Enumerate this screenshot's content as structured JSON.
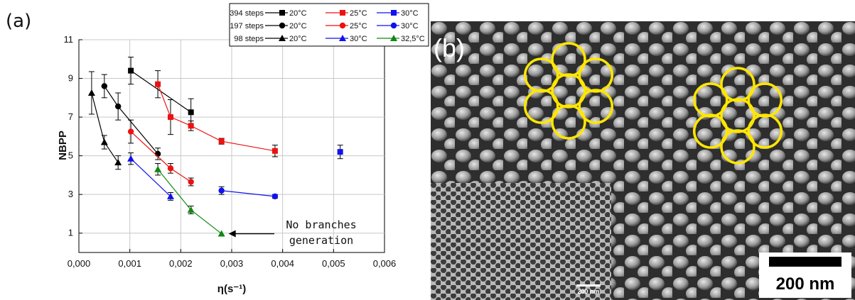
{
  "panel_a_label": "(a)",
  "panel_b_label": "(b)",
  "chart_data": {
    "type": "scatter",
    "xlabel": "η(s⁻¹)",
    "ylabel": "NBPP",
    "xlim": [
      0,
      0.006
    ],
    "ylim": [
      0,
      11
    ],
    "xticks": [
      "0,000",
      "0,001",
      "0,002",
      "0,003",
      "0,004",
      "0,005",
      "0,006"
    ],
    "yticks": [
      "1",
      "3",
      "5",
      "7",
      "9",
      "11"
    ],
    "grid": true,
    "legend_position": "top-right",
    "legend_rows": [
      {
        "label": "394 steps",
        "series": [
          0,
          1,
          2
        ]
      },
      {
        "label": "197 steps",
        "series": [
          3,
          4,
          5
        ]
      },
      {
        "label": "98 steps",
        "series": [
          6,
          7,
          8
        ]
      }
    ],
    "series": [
      {
        "name": "20°C",
        "group": "394 steps",
        "marker": "square",
        "color": "#000000",
        "points": [
          {
            "x": 0.00102,
            "y": 9.4,
            "err": 0.7
          },
          {
            "x": 0.0022,
            "y": 7.25,
            "err": 0.7
          }
        ]
      },
      {
        "name": "25°C",
        "group": "394 steps",
        "marker": "square",
        "color": "#ee1111",
        "points": [
          {
            "x": 0.00155,
            "y": 8.7,
            "err": 0.7
          },
          {
            "x": 0.0018,
            "y": 7.0,
            "err": 0.9
          },
          {
            "x": 0.0022,
            "y": 6.55,
            "err": 0.25
          },
          {
            "x": 0.0028,
            "y": 5.75,
            "err": 0.15
          },
          {
            "x": 0.00385,
            "y": 5.25,
            "err": 0.3
          }
        ]
      },
      {
        "name": "30°C",
        "group": "394 steps",
        "marker": "square",
        "color": "#1111ee",
        "points": [
          {
            "x": 0.00513,
            "y": 5.2,
            "err": 0.35
          }
        ]
      },
      {
        "name": "20°C",
        "group": "197 steps",
        "marker": "circle",
        "color": "#000000",
        "points": [
          {
            "x": 0.0005,
            "y": 8.6,
            "err": 0.6
          },
          {
            "x": 0.00077,
            "y": 7.55,
            "err": 0.7
          },
          {
            "x": 0.00155,
            "y": 5.1,
            "err": 0.3
          }
        ]
      },
      {
        "name": "25°C",
        "group": "197 steps",
        "marker": "circle",
        "color": "#ee1111",
        "points": [
          {
            "x": 0.00102,
            "y": 6.25,
            "err": 0.6
          },
          {
            "x": 0.0018,
            "y": 4.35,
            "err": 0.25
          },
          {
            "x": 0.0022,
            "y": 3.65,
            "err": 0.2
          }
        ]
      },
      {
        "name": "30°C",
        "group": "197 steps",
        "marker": "circle",
        "color": "#1111ee",
        "points": [
          {
            "x": 0.0028,
            "y": 3.2,
            "err": 0.2
          },
          {
            "x": 0.00385,
            "y": 2.9,
            "err": 0.1
          }
        ]
      },
      {
        "name": "20°C",
        "group": "98 steps",
        "marker": "triangle",
        "color": "#000000",
        "points": [
          {
            "x": 0.00025,
            "y": 8.25,
            "err": 1.1
          },
          {
            "x": 0.0005,
            "y": 5.7,
            "err": 0.35
          },
          {
            "x": 0.00077,
            "y": 4.65,
            "err": 0.35
          }
        ]
      },
      {
        "name": "30°C",
        "group": "98 steps",
        "marker": "triangle",
        "color": "#1111ee",
        "points": [
          {
            "x": 0.00102,
            "y": 4.85,
            "err": 0.3
          },
          {
            "x": 0.0018,
            "y": 2.9,
            "err": 0.2
          }
        ]
      },
      {
        "name": "32,5°C",
        "group": "98 steps",
        "marker": "triangle",
        "color": "#118811",
        "points": [
          {
            "x": 0.00155,
            "y": 4.3,
            "err": 0.3
          },
          {
            "x": 0.0022,
            "y": 2.2,
            "err": 0.2
          },
          {
            "x": 0.0028,
            "y": 0.97,
            "err": 0
          }
        ]
      }
    ],
    "annotation": {
      "lines": [
        "No branches",
        "generation"
      ],
      "points_to": {
        "x": 0.0028,
        "y": 0.97
      }
    }
  },
  "micrograph": {
    "scale_bar": "200 nm",
    "inset_scale_bar": "200 nm",
    "circle_color": "#ffe600"
  }
}
